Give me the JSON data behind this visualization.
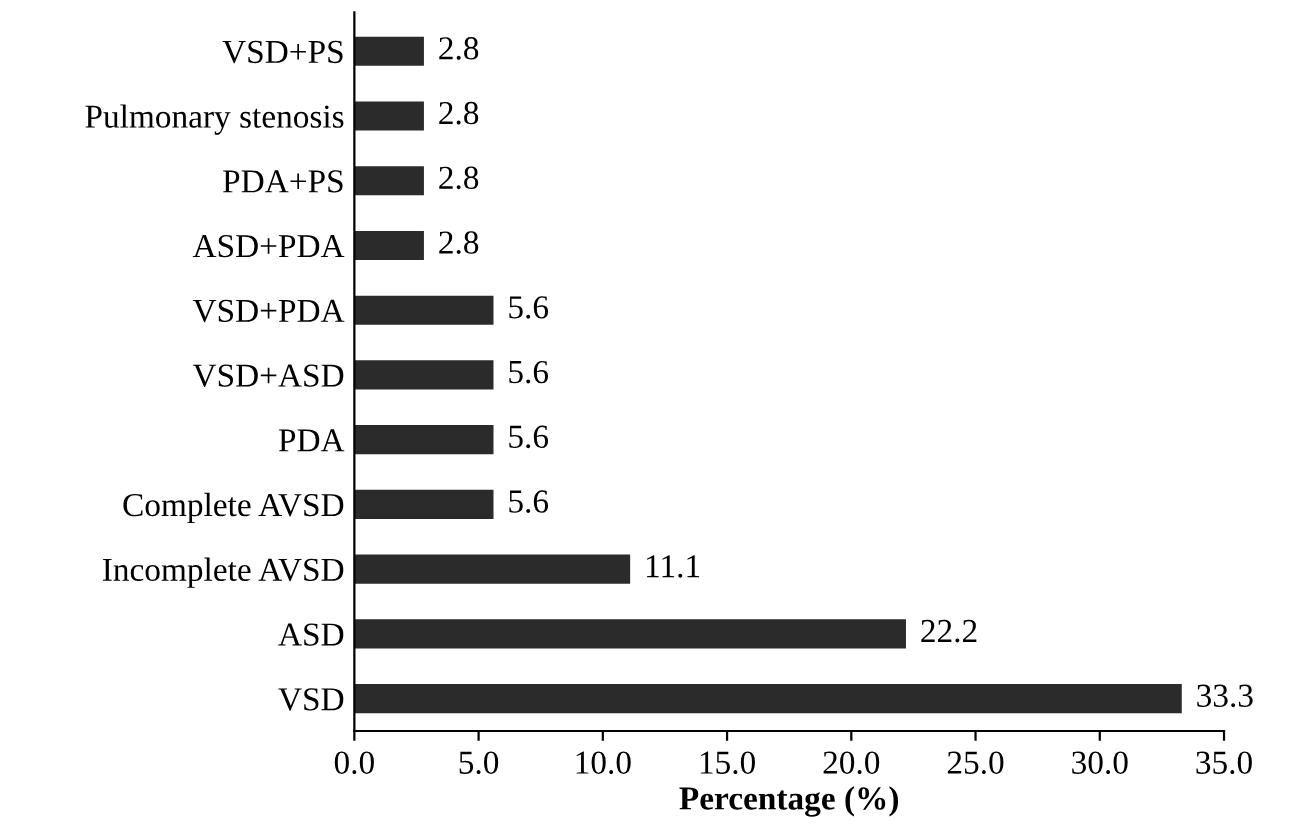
{
  "chart_data": {
    "type": "bar",
    "orientation": "horizontal",
    "xlabel": "Percentage (%)",
    "categories": [
      "VSD+PS",
      "Pulmonary stenosis",
      "PDA+PS",
      "ASD+PDA",
      "VSD+PDA",
      "VSD+ASD",
      "PDA",
      "Complete AVSD",
      "Incomplete AVSD",
      "ASD",
      "VSD"
    ],
    "values": [
      2.8,
      2.8,
      2.8,
      2.8,
      5.6,
      5.6,
      5.6,
      5.6,
      11.1,
      22.2,
      33.3
    ],
    "color": "#2b2b2b",
    "data_labels": true,
    "grid": false,
    "legend": false,
    "xlim": [
      0,
      35
    ],
    "xticks": [
      {
        "value": 0,
        "label": "0.0"
      },
      {
        "value": 5,
        "label": "5.0"
      },
      {
        "value": 10,
        "label": "10.0"
      },
      {
        "value": 15,
        "label": "15.0"
      },
      {
        "value": 20,
        "label": "20.0"
      },
      {
        "value": 25,
        "label": "25.0"
      },
      {
        "value": 30,
        "label": "30.0"
      },
      {
        "value": 35,
        "label": "35.0"
      }
    ]
  }
}
